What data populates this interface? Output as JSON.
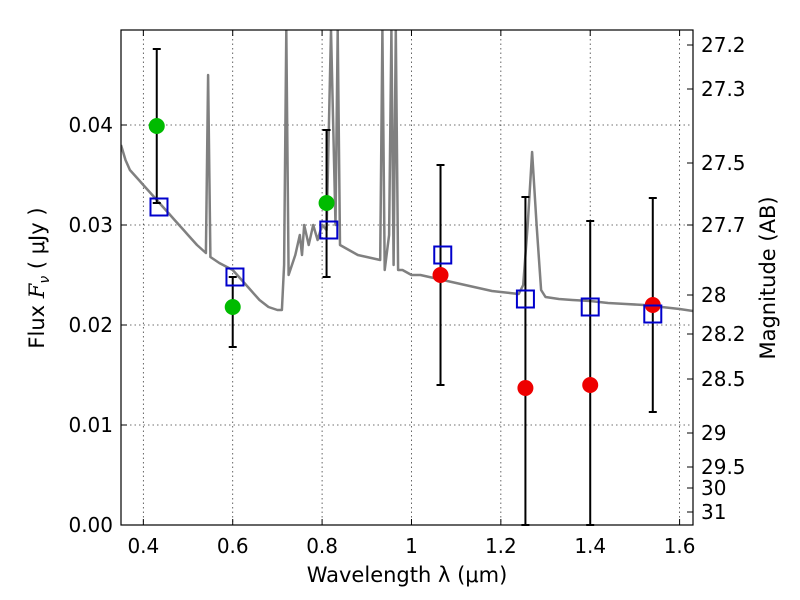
{
  "chart_data": {
    "type": "scatter",
    "title": "",
    "xlabel": "Wavelength  λ (μm)",
    "ylabel_prefix": "Flux  ",
    "ylabel_math": "F",
    "ylabel_sub": "ν",
    "ylabel_suffix": "  ( μJy )",
    "y2label": "Magnitude (AB)",
    "xlim": [
      0.35,
      1.63
    ],
    "ylim": [
      0.0,
      0.0495
    ],
    "grid": true,
    "x_ticks": [
      0.4,
      0.6,
      0.8,
      1.0,
      1.2,
      1.4,
      1.6
    ],
    "x_tick_labels": [
      "0.4",
      "0.6",
      "0.8",
      "1",
      "1.2",
      "1.4",
      "1.6"
    ],
    "y_ticks": [
      0.0,
      0.01,
      0.02,
      0.03,
      0.04
    ],
    "y_tick_labels": [
      "0.00",
      "0.01",
      "0.02",
      "0.03",
      "0.04"
    ],
    "y2_ticks": [
      {
        "flux": 0.048,
        "label": "27.2"
      },
      {
        "flux": 0.0436,
        "label": "27.3"
      },
      {
        "flux": 0.0362,
        "label": "27.5"
      },
      {
        "flux": 0.03,
        "label": "27.7"
      },
      {
        "flux": 0.023,
        "label": "28"
      },
      {
        "flux": 0.0191,
        "label": "28.2"
      },
      {
        "flux": 0.0146,
        "label": "28.5"
      },
      {
        "flux": 0.0092,
        "label": "29"
      },
      {
        "flux": 0.0058,
        "label": "29.5"
      },
      {
        "flux": 0.0037,
        "label": "30"
      },
      {
        "flux": 0.0013,
        "label": "31"
      }
    ],
    "colors": {
      "green": "#00bb00",
      "red": "#ee0000",
      "model": "#0000cc",
      "template": "#808080",
      "errorbar": "#000000"
    },
    "template_spectrum": [
      [
        0.35,
        0.038
      ],
      [
        0.36,
        0.0365
      ],
      [
        0.37,
        0.0355
      ],
      [
        0.38,
        0.035
      ],
      [
        0.39,
        0.0345
      ],
      [
        0.4,
        0.034
      ],
      [
        0.41,
        0.0335
      ],
      [
        0.42,
        0.033
      ],
      [
        0.43,
        0.0325
      ],
      [
        0.44,
        0.032
      ],
      [
        0.45,
        0.0315
      ],
      [
        0.46,
        0.031
      ],
      [
        0.47,
        0.0305
      ],
      [
        0.48,
        0.03
      ],
      [
        0.49,
        0.0295
      ],
      [
        0.5,
        0.029
      ],
      [
        0.52,
        0.028
      ],
      [
        0.54,
        0.0272
      ],
      [
        0.545,
        0.045
      ],
      [
        0.55,
        0.0268
      ],
      [
        0.57,
        0.0262
      ],
      [
        0.6,
        0.0255
      ],
      [
        0.62,
        0.0245
      ],
      [
        0.64,
        0.0235
      ],
      [
        0.66,
        0.0225
      ],
      [
        0.68,
        0.0218
      ],
      [
        0.7,
        0.0215
      ],
      [
        0.71,
        0.0215
      ],
      [
        0.715,
        0.026
      ],
      [
        0.72,
        0.0495
      ],
      [
        0.725,
        0.025
      ],
      [
        0.74,
        0.027
      ],
      [
        0.75,
        0.029
      ],
      [
        0.755,
        0.027
      ],
      [
        0.76,
        0.03
      ],
      [
        0.77,
        0.028
      ],
      [
        0.78,
        0.03
      ],
      [
        0.79,
        0.0285
      ],
      [
        0.8,
        0.03
      ],
      [
        0.81,
        0.0295
      ],
      [
        0.82,
        0.0495
      ],
      [
        0.83,
        0.03
      ],
      [
        0.835,
        0.0495
      ],
      [
        0.84,
        0.028
      ],
      [
        0.86,
        0.0275
      ],
      [
        0.88,
        0.027
      ],
      [
        0.9,
        0.0268
      ],
      [
        0.93,
        0.0265
      ],
      [
        0.935,
        0.0495
      ],
      [
        0.94,
        0.0255
      ],
      [
        0.95,
        0.029
      ],
      [
        0.955,
        0.0495
      ],
      [
        0.96,
        0.026
      ],
      [
        0.965,
        0.0495
      ],
      [
        0.97,
        0.0255
      ],
      [
        0.98,
        0.0255
      ],
      [
        1.0,
        0.025
      ],
      [
        1.02,
        0.025
      ],
      [
        1.04,
        0.0248
      ],
      [
        1.06,
        0.0246
      ],
      [
        1.08,
        0.0244
      ],
      [
        1.1,
        0.0242
      ],
      [
        1.12,
        0.024
      ],
      [
        1.14,
        0.0238
      ],
      [
        1.16,
        0.0236
      ],
      [
        1.18,
        0.0234
      ],
      [
        1.2,
        0.0233
      ],
      [
        1.22,
        0.0232
      ],
      [
        1.24,
        0.0231
      ],
      [
        1.25,
        0.024
      ],
      [
        1.26,
        0.03
      ],
      [
        1.27,
        0.0373
      ],
      [
        1.28,
        0.03
      ],
      [
        1.29,
        0.0235
      ],
      [
        1.3,
        0.0228
      ],
      [
        1.33,
        0.0226
      ],
      [
        1.36,
        0.0225
      ],
      [
        1.4,
        0.0224
      ],
      [
        1.44,
        0.0222
      ],
      [
        1.48,
        0.0221
      ],
      [
        1.52,
        0.022
      ],
      [
        1.56,
        0.0218
      ],
      [
        1.6,
        0.0216
      ],
      [
        1.63,
        0.0214
      ]
    ],
    "series": [
      {
        "name": "observed-green",
        "color": "#00bb00",
        "points": [
          {
            "x": 0.43,
            "y": 0.0399,
            "lo": 0.0322,
            "hi": 0.0476
          },
          {
            "x": 0.6,
            "y": 0.0218,
            "lo": 0.0178,
            "hi": 0.0248
          },
          {
            "x": 0.81,
            "y": 0.0322,
            "lo": 0.0248,
            "hi": 0.0395
          }
        ]
      },
      {
        "name": "observed-red",
        "color": "#ee0000",
        "points": [
          {
            "x": 1.065,
            "y": 0.025,
            "lo": 0.014,
            "hi": 0.036
          },
          {
            "x": 1.255,
            "y": 0.0137,
            "lo": 0.0,
            "hi": 0.0328
          },
          {
            "x": 1.4,
            "y": 0.014,
            "lo": 0.0,
            "hi": 0.0304
          },
          {
            "x": 1.54,
            "y": 0.022,
            "lo": 0.0113,
            "hi": 0.0327
          }
        ]
      },
      {
        "name": "model-squares",
        "color": "#0000cc",
        "points": [
          {
            "x": 0.435,
            "y": 0.0318
          },
          {
            "x": 0.605,
            "y": 0.0248
          },
          {
            "x": 0.815,
            "y": 0.0295
          },
          {
            "x": 1.07,
            "y": 0.027
          },
          {
            "x": 1.255,
            "y": 0.0226
          },
          {
            "x": 1.4,
            "y": 0.0218
          },
          {
            "x": 1.54,
            "y": 0.0211
          }
        ]
      }
    ]
  }
}
